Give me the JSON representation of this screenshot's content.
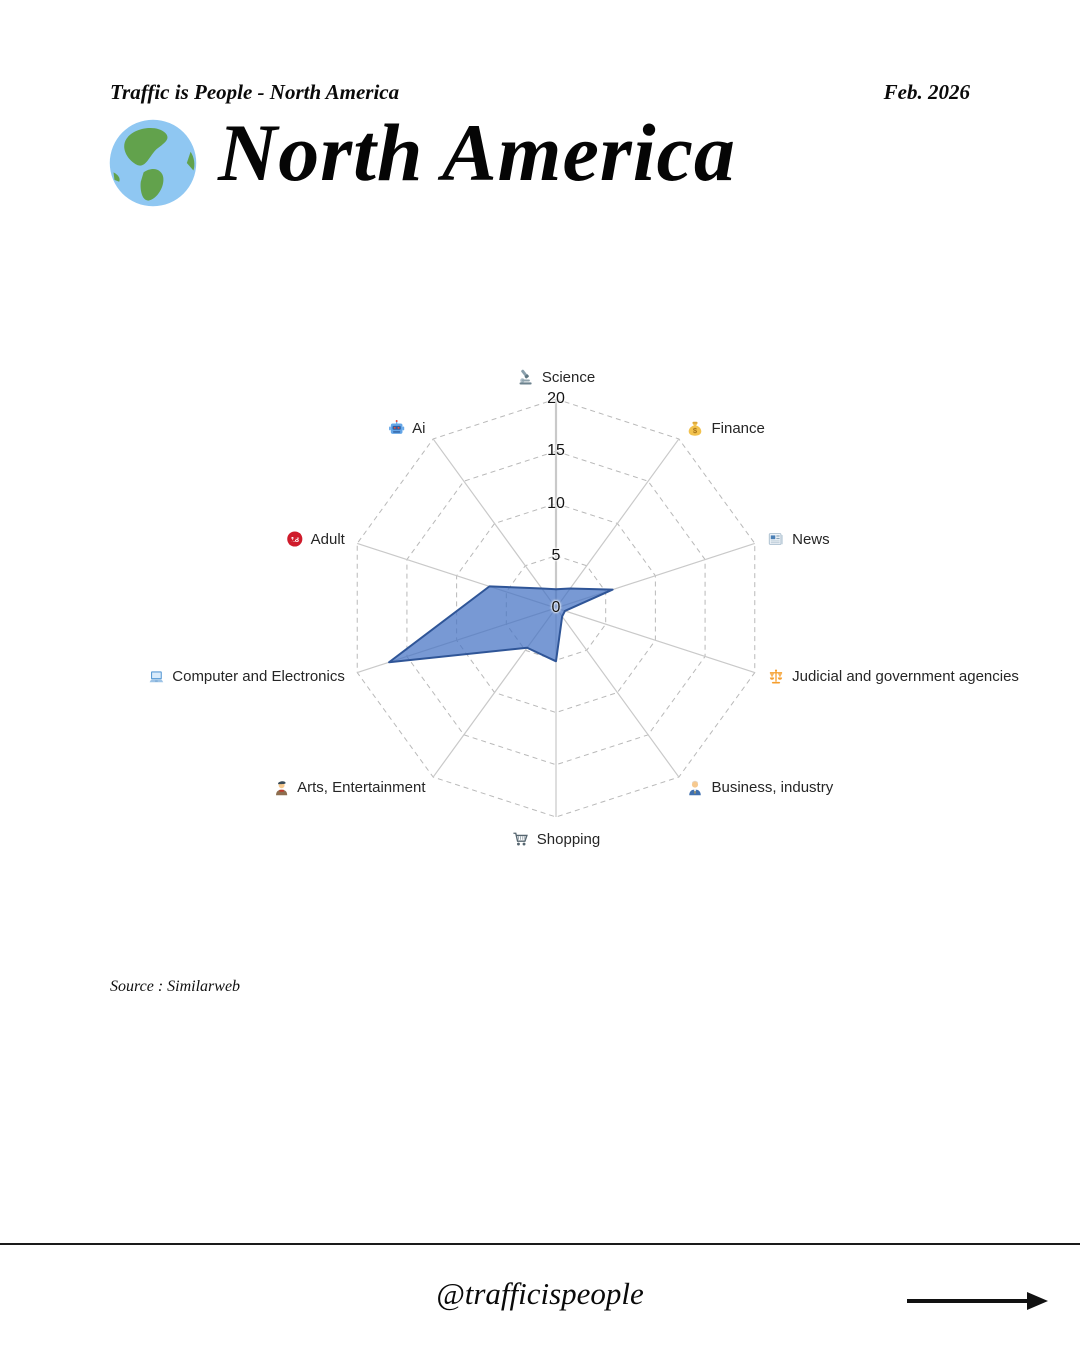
{
  "page": {
    "header_left": "Traffic is People - North America",
    "header_right": "Feb. 2026",
    "title": "North America",
    "title_icon": "globe-americas-icon",
    "source": "Source : Similarweb",
    "footer_handle": "@trafficispeople",
    "footer_icon": "arrow-right-icon"
  },
  "chart_data": {
    "type": "radar",
    "title": "North America traffic share by category",
    "categories": [
      "Science",
      "Finance",
      "News",
      "Judicial and government agencies",
      "Business, industry",
      "Shopping",
      "Arts, Entertainment",
      "Computer and Electronics",
      "Adult",
      "Ai"
    ],
    "icons": [
      "microscope-icon",
      "money-bag-icon",
      "newspaper-icon",
      "balance-scale-icon",
      "office-worker-icon",
      "shopping-cart-icon",
      "artist-icon",
      "laptop-icon",
      "under-18-icon",
      "robot-icon"
    ],
    "values": [
      1.8,
      2.3,
      5.7,
      0.9,
      1.0,
      5.1,
      4.7,
      16.8,
      6.7,
      2.3
    ],
    "radial_ticks": [
      0,
      5,
      10,
      15,
      20
    ],
    "rlim": [
      0,
      20
    ],
    "grid": "dashed polygon rings with solid spokes",
    "legend": "none",
    "fill_color": "#4472C4",
    "fill_opacity": 0.72,
    "line_color": "#2F5597",
    "grid_ring_color": "#b9b9b9",
    "spoke_color": "#c9c9c9"
  }
}
